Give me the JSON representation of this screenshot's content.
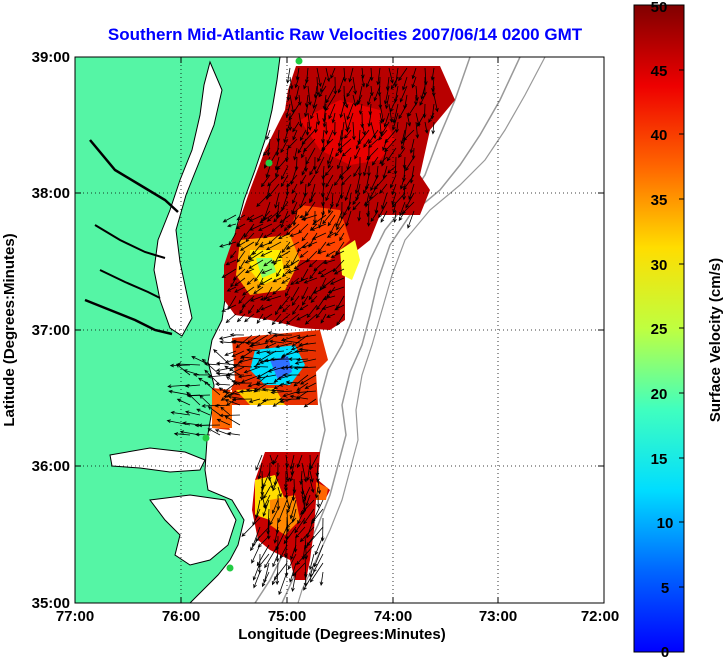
{
  "title": "Southern Mid-Atlantic Raw Velocities 2007/06/14 0200 GMT",
  "xlabel": "Longitude (Degrees:Minutes)",
  "ylabel": "Latitude (Degrees:Minutes)",
  "colorbar_label": "Surface Velocity (cm/s)",
  "x_ticks": [
    "77:00",
    "76:00",
    "75:00",
    "74:00",
    "73:00",
    "72:00"
  ],
  "y_ticks": [
    "39:00",
    "38:00",
    "37:00",
    "36:00",
    "35:00"
  ],
  "colorbar_ticks": [
    "50",
    "45",
    "40",
    "35",
    "30",
    "25",
    "20",
    "15",
    "10",
    "5",
    "0"
  ],
  "colors": {
    "land": "#55f5a5",
    "coast": "#000000",
    "bathymetry": "#999999",
    "title": "#0000ff",
    "station": "#22cc44"
  },
  "chart_data": {
    "type": "heatmap",
    "title": "Southern Mid-Atlantic Raw Velocities 2007/06/14 0200 GMT",
    "xlabel": "Longitude (Degrees:Minutes)",
    "ylabel": "Latitude (Degrees:Minutes)",
    "xlim": [
      -77,
      -72
    ],
    "ylim": [
      35,
      39
    ],
    "colorbar": {
      "label": "Surface Velocity (cm/s)",
      "range": [
        0,
        50
      ],
      "colormap": "jet"
    },
    "grid": true
  }
}
